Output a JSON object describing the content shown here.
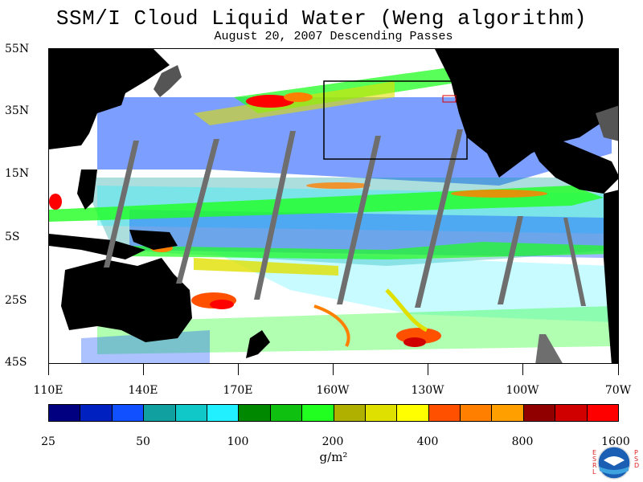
{
  "title": "SSM/I Cloud Liquid Water (Weng algorithm)",
  "subtitle": "August 20, 2007  Descending Passes",
  "lat_labels": [
    "55N",
    "35N",
    "15N",
    "5S",
    "25S",
    "45S"
  ],
  "lon_labels": [
    "110E",
    "140E",
    "170E",
    "160W",
    "130W",
    "100W",
    "70W"
  ],
  "colorbar": {
    "labels": [
      "25",
      "50",
      "100",
      "200",
      "400",
      "800",
      "1600"
    ],
    "units": "g/m²",
    "colors": [
      "#000080",
      "#0020c0",
      "#1050ff",
      "#10a0a0",
      "#10c8c8",
      "#20f0ff",
      "#008800",
      "#10c010",
      "#20ff20",
      "#b0b000",
      "#e0e000",
      "#ffff00",
      "#ff5000",
      "#ff8000",
      "#ffa000",
      "#900000",
      "#d00000",
      "#ff0000"
    ]
  },
  "logo": {
    "left_text": [
      "E",
      "S",
      "R",
      "L"
    ],
    "center_text": "NOAA",
    "right_text": [
      "P",
      "S",
      "D"
    ]
  }
}
